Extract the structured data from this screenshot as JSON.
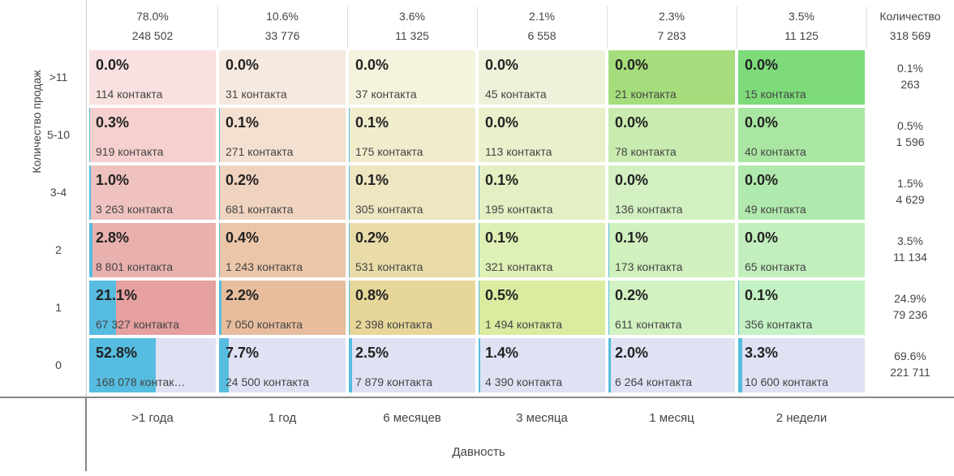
{
  "header": {
    "columns": [
      {
        "share": "78.0%",
        "count": "248 502"
      },
      {
        "share": "10.6%",
        "count": "33 776"
      },
      {
        "share": "3.6%",
        "count": "11 325"
      },
      {
        "share": "2.1%",
        "count": "6 558"
      },
      {
        "share": "2.3%",
        "count": "7 283"
      },
      {
        "share": "3.5%",
        "count": "11 125"
      }
    ],
    "total": {
      "title": "Количество",
      "count": "318 569"
    }
  },
  "y_axis_title": "Количество продаж",
  "x_axis_title": "Давность",
  "columns": [
    ">1 года",
    "1 год",
    "6 месяцев",
    "3 месяца",
    "1 месяц",
    "2 недели"
  ],
  "bar_color": "#56bde0",
  "rows": [
    {
      "label": ">11",
      "colors": [
        "#f8e1e0",
        "#f6e9e0",
        "#f4f3dd",
        "#edf3da",
        "#a5dd7c",
        "#7ddb7a"
      ],
      "cells": [
        {
          "share": {
            "value": 0.0,
            "label": "0.0%"
          },
          "contacts": "114 контакта"
        },
        {
          "share": {
            "value": 0.0,
            "label": "0.0%"
          },
          "contacts": "31 контакта"
        },
        {
          "share": {
            "value": 0.0,
            "label": "0.0%"
          },
          "contacts": "37 контакта"
        },
        {
          "share": {
            "value": 0.0,
            "label": "0.0%"
          },
          "contacts": "45 контакта"
        },
        {
          "share": {
            "value": 0.0,
            "label": "0.0%"
          },
          "contacts": "21 контакта"
        },
        {
          "share": {
            "value": 0.0,
            "label": "0.0%"
          },
          "contacts": "15 контакта"
        }
      ],
      "total": {
        "share": "0.1%",
        "count": "263"
      }
    },
    {
      "label": "5-10",
      "colors": [
        "#f5d0cf",
        "#f3e0d0",
        "#f0eccc",
        "#e9f0cc",
        "#c9ebb0",
        "#a9e6a2"
      ],
      "cells": [
        {
          "share": {
            "value": 0.3,
            "label": "0.3%"
          },
          "contacts": "919 контакта"
        },
        {
          "share": {
            "value": 0.1,
            "label": "0.1%"
          },
          "contacts": "271 контакта"
        },
        {
          "share": {
            "value": 0.1,
            "label": "0.1%"
          },
          "contacts": "175 контакта"
        },
        {
          "share": {
            "value": 0.0,
            "label": "0.0%"
          },
          "contacts": "113 контакта"
        },
        {
          "share": {
            "value": 0.0,
            "label": "0.0%"
          },
          "contacts": "78 контакта"
        },
        {
          "share": {
            "value": 0.0,
            "label": "0.0%"
          },
          "contacts": "40 контакта"
        }
      ],
      "total": {
        "share": "0.5%",
        "count": "1 596"
      }
    },
    {
      "label": "3-4",
      "colors": [
        "#f0c2bf",
        "#efd3bf",
        "#ede6c1",
        "#e4efc3",
        "#d2f0c1",
        "#b0e9ad"
      ],
      "cells": [
        {
          "share": {
            "value": 1.0,
            "label": "1.0%"
          },
          "contacts": "3 263 контакта"
        },
        {
          "share": {
            "value": 0.2,
            "label": "0.2%"
          },
          "contacts": "681 контакта"
        },
        {
          "share": {
            "value": 0.1,
            "label": "0.1%"
          },
          "contacts": "305 контакта"
        },
        {
          "share": {
            "value": 0.1,
            "label": "0.1%"
          },
          "contacts": "195 контакта"
        },
        {
          "share": {
            "value": 0.0,
            "label": "0.0%"
          },
          "contacts": "136 контакта"
        },
        {
          "share": {
            "value": 0.0,
            "label": "0.0%"
          },
          "contacts": "49 контакта"
        }
      ],
      "total": {
        "share": "1.5%",
        "count": "4 629"
      }
    },
    {
      "label": "2",
      "colors": [
        "#e9b1ae",
        "#ebc6a9",
        "#e9dca9",
        "#def0b5",
        "#d0f0bd",
        "#c2efbd"
      ],
      "cells": [
        {
          "share": {
            "value": 2.8,
            "label": "2.8%"
          },
          "contacts": "8 801 контакта"
        },
        {
          "share": {
            "value": 0.4,
            "label": "0.4%"
          },
          "contacts": "1 243 контакта"
        },
        {
          "share": {
            "value": 0.2,
            "label": "0.2%"
          },
          "contacts": "531 контакта"
        },
        {
          "share": {
            "value": 0.1,
            "label": "0.1%"
          },
          "contacts": "321 контакта"
        },
        {
          "share": {
            "value": 0.1,
            "label": "0.1%"
          },
          "contacts": "173 контакта"
        },
        {
          "share": {
            "value": 0.0,
            "label": "0.0%"
          },
          "contacts": "65 контакта"
        }
      ],
      "total": {
        "share": "3.5%",
        "count": "11 134"
      }
    },
    {
      "label": "1",
      "colors": [
        "#e5a09f",
        "#e7bd9d",
        "#e6d698",
        "#dbeba0",
        "#d3f2c2",
        "#c4f2c4"
      ],
      "cells": [
        {
          "share": {
            "value": 21.1,
            "label": "21.1%"
          },
          "contacts": "67 327 контакта"
        },
        {
          "share": {
            "value": 2.2,
            "label": "2.2%"
          },
          "contacts": "7 050 контакта"
        },
        {
          "share": {
            "value": 0.8,
            "label": "0.8%"
          },
          "contacts": "2 398 контакта"
        },
        {
          "share": {
            "value": 0.5,
            "label": "0.5%"
          },
          "contacts": "1 494 контакта"
        },
        {
          "share": {
            "value": 0.2,
            "label": "0.2%"
          },
          "contacts": "611 контакта"
        },
        {
          "share": {
            "value": 0.1,
            "label": "0.1%"
          },
          "contacts": "356 контакта"
        }
      ],
      "total": {
        "share": "24.9%",
        "count": "79 236"
      }
    },
    {
      "label": "0",
      "colors": [
        "#dfe2f3",
        "#dfe2f3",
        "#dfe2f3",
        "#dfe2f3",
        "#dfe2f3",
        "#dfe2f3"
      ],
      "cells": [
        {
          "share": {
            "value": 52.8,
            "label": "52.8%"
          },
          "contacts": "168 078 контак…"
        },
        {
          "share": {
            "value": 7.7,
            "label": "7.7%"
          },
          "contacts": "24 500 контакта"
        },
        {
          "share": {
            "value": 2.5,
            "label": "2.5%"
          },
          "contacts": "7 879 контакта"
        },
        {
          "share": {
            "value": 1.4,
            "label": "1.4%"
          },
          "contacts": "4 390 контакта"
        },
        {
          "share": {
            "value": 2.0,
            "label": "2.0%"
          },
          "contacts": "6 264 контакта"
        },
        {
          "share": {
            "value": 3.3,
            "label": "3.3%"
          },
          "contacts": "10 600 контакта"
        }
      ],
      "total": {
        "share": "69.6%",
        "count": "221 711"
      }
    }
  ]
}
